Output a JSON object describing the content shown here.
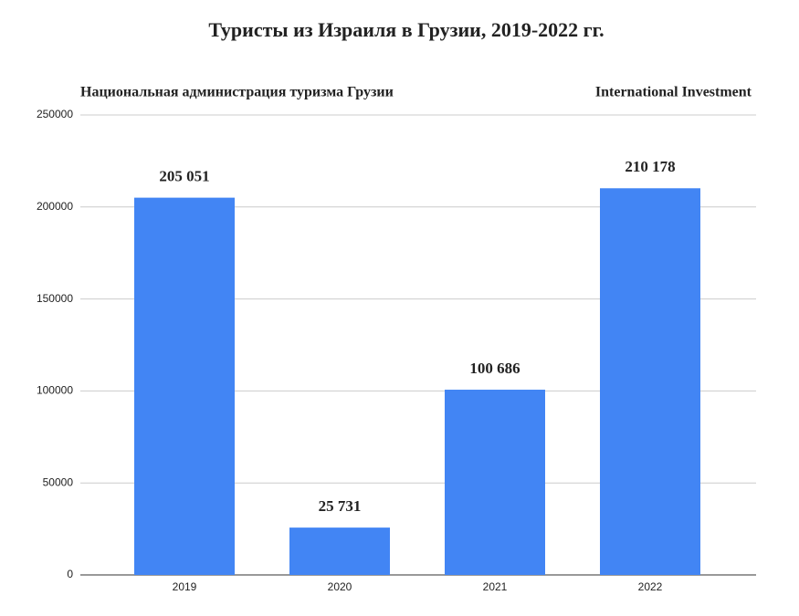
{
  "chart_data": {
    "type": "bar",
    "title": "Туристы из Израиля в Грузии, 2019-2022 гг.",
    "annotations": [
      "Национальная администрация туризма Грузии",
      "International Investment"
    ],
    "categories": [
      "2019",
      "2020",
      "2021",
      "2022"
    ],
    "values": [
      205051,
      25731,
      100686,
      210178
    ],
    "value_labels": [
      "205 051",
      "25 731",
      "100 686",
      "210 178"
    ],
    "color": "#4285f4",
    "ylim": [
      0,
      250000
    ],
    "yticks": [
      0,
      50000,
      100000,
      150000,
      200000,
      250000
    ],
    "grid": true
  }
}
